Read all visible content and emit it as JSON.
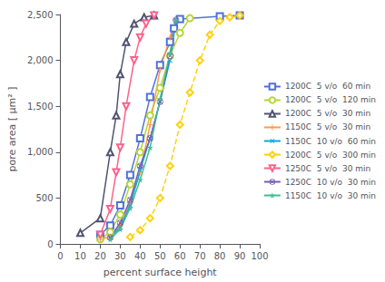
{
  "chart_data": {
    "type": "line",
    "xlabel": "percent surface height",
    "ylabel": "pore area [ μm² ]",
    "xlim": [
      0,
      100
    ],
    "ylim": [
      0,
      2500
    ],
    "xticks": [
      0,
      10,
      20,
      30,
      40,
      50,
      60,
      70,
      80,
      90,
      100
    ],
    "yticks": [
      0,
      500,
      1000,
      1500,
      2000,
      2500
    ],
    "grid": false,
    "legend": "right",
    "series": [
      {
        "name": "1200C  5 v/o  60 min",
        "marker": "square",
        "line_style": "solid",
        "x": [
          20,
          25,
          30,
          35,
          40,
          45,
          50,
          55,
          57,
          60,
          80,
          90
        ],
        "values": [
          100,
          200,
          420,
          750,
          1150,
          1600,
          1950,
          2200,
          2350,
          2450,
          2480,
          2490
        ]
      },
      {
        "name": "1200C  5 v/o  120 min",
        "marker": "circle",
        "line_style": "solid",
        "x": [
          20,
          25,
          30,
          35,
          40,
          45,
          50,
          55,
          60,
          65
        ],
        "values": [
          50,
          130,
          320,
          650,
          1000,
          1400,
          1700,
          2050,
          2300,
          2460
        ]
      },
      {
        "name": "1200C  5 v/o  30 min",
        "marker": "triangle-up",
        "line_style": "solid",
        "x": [
          10,
          20,
          25,
          28,
          30,
          33,
          37,
          42,
          47
        ],
        "values": [
          120,
          280,
          1000,
          1400,
          1850,
          2200,
          2400,
          2470,
          2490
        ]
      },
      {
        "name": "1150C  5 v/o  30 min",
        "marker": "plus",
        "line_style": "solid",
        "x": [
          20,
          25,
          30,
          35,
          40,
          45,
          50,
          55,
          58
        ],
        "values": [
          50,
          80,
          200,
          450,
          780,
          1300,
          1900,
          2250,
          2440
        ]
      },
      {
        "name": "1150C  10 v/o  60 min",
        "marker": "x",
        "line_style": "solid",
        "x": [
          25,
          30,
          35,
          40,
          45,
          50,
          55,
          58
        ],
        "values": [
          70,
          180,
          420,
          800,
          1150,
          1550,
          2000,
          2430
        ]
      },
      {
        "name": "1200C  5 v/o  300 min",
        "marker": "diamond",
        "line_style": "dashed",
        "x": [
          35,
          40,
          45,
          50,
          55,
          60,
          65,
          70,
          75,
          80,
          85,
          90
        ],
        "values": [
          75,
          150,
          280,
          500,
          850,
          1300,
          1650,
          2000,
          2280,
          2430,
          2470,
          2490
        ]
      },
      {
        "name": "1250C  5 v/o  30 min",
        "marker": "triangle-down",
        "line_style": "solid",
        "x": [
          20,
          25,
          28,
          30,
          33,
          37,
          40,
          43,
          47
        ],
        "values": [
          100,
          380,
          780,
          1050,
          1500,
          2000,
          2250,
          2400,
          2490
        ]
      },
      {
        "name": "1250C  10 v/o  30 min",
        "marker": "circle-x",
        "line_style": "solid",
        "x": [
          25,
          30,
          35,
          40,
          45,
          50,
          55,
          58
        ],
        "values": [
          70,
          230,
          480,
          850,
          1150,
          1550,
          2050,
          2440
        ]
      },
      {
        "name": "1150C  10 v/o  30 min",
        "marker": "star",
        "line_style": "solid",
        "x": [
          25,
          30,
          35,
          40,
          45,
          50,
          55,
          58
        ],
        "values": [
          50,
          160,
          390,
          700,
          1050,
          1580,
          2080,
          2440
        ]
      }
    ]
  }
}
